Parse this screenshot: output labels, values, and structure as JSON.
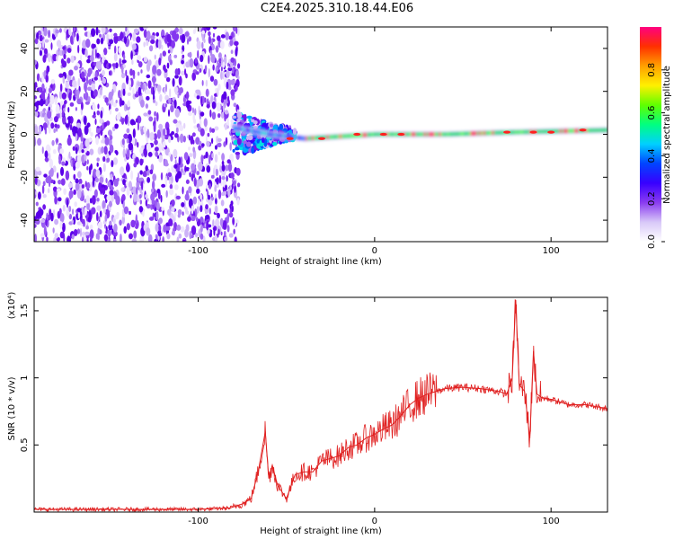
{
  "title": "C2E4.2025.310.18.44.E06",
  "chart_data": [
    {
      "type": "heatmap",
      "xlabel": "Height of straight line (km)",
      "ylabel": "Frequency (Hz)",
      "xlim": [
        -193,
        132
      ],
      "ylim": [
        -50,
        50
      ],
      "x_ticks": [
        -100,
        0,
        100
      ],
      "y_ticks": [
        -40,
        -20,
        0,
        20,
        40
      ],
      "colorbar": {
        "label": "Normalized spectral amplitude",
        "range": [
          0,
          1
        ],
        "ticks": [
          0.0,
          0.2,
          0.4,
          0.6,
          0.8
        ],
        "colors": [
          "#ffffff",
          "#d8c8f8",
          "#8a3cf0",
          "#3800ff",
          "#0044ff",
          "#00d0ff",
          "#00ff80",
          "#60ff00",
          "#fff000",
          "#ffa000",
          "#ff3000",
          "#ff0080"
        ]
      },
      "noise_region_x": [
        -193,
        -80
      ],
      "signal_ridge": {
        "x": [
          -80,
          -60,
          -40,
          -20,
          0,
          40,
          80,
          132
        ],
        "freq": [
          3,
          0,
          -2,
          -1,
          0,
          0,
          1,
          2
        ]
      },
      "grid": false
    },
    {
      "type": "line",
      "xlabel": "Height of straight line (km)",
      "ylabel": "SNR (10 * v/v)",
      "y_multiplier": "(x10⁴)",
      "xlim": [
        -193,
        132
      ],
      "ylim": [
        0,
        1.6
      ],
      "x_ticks": [
        -100,
        0,
        100
      ],
      "y_ticks": [
        0.5,
        1.0,
        1.5
      ],
      "series": [
        {
          "color": "#e02020",
          "x": [
            -193,
            -150,
            -100,
            -82,
            -75,
            -70,
            -66,
            -62,
            -60,
            -58,
            -55,
            -50,
            -45,
            -40,
            -35,
            -30,
            -25,
            -20,
            -15,
            -10,
            -5,
            0,
            5,
            10,
            15,
            20,
            25,
            30,
            40,
            50,
            60,
            70,
            75,
            78,
            80,
            82,
            85,
            88,
            90,
            92,
            95,
            100,
            110,
            120,
            132
          ],
          "y": [
            0.02,
            0.02,
            0.02,
            0.03,
            0.06,
            0.1,
            0.3,
            0.6,
            0.25,
            0.35,
            0.2,
            0.1,
            0.28,
            0.3,
            0.3,
            0.38,
            0.4,
            0.42,
            0.48,
            0.5,
            0.55,
            0.58,
            0.62,
            0.65,
            0.72,
            0.8,
            0.85,
            0.88,
            0.92,
            0.93,
            0.92,
            0.9,
            0.88,
            1.0,
            1.58,
            0.95,
            0.9,
            0.55,
            1.2,
            0.88,
            0.85,
            0.84,
            0.8,
            0.8,
            0.77
          ]
        }
      ]
    }
  ]
}
